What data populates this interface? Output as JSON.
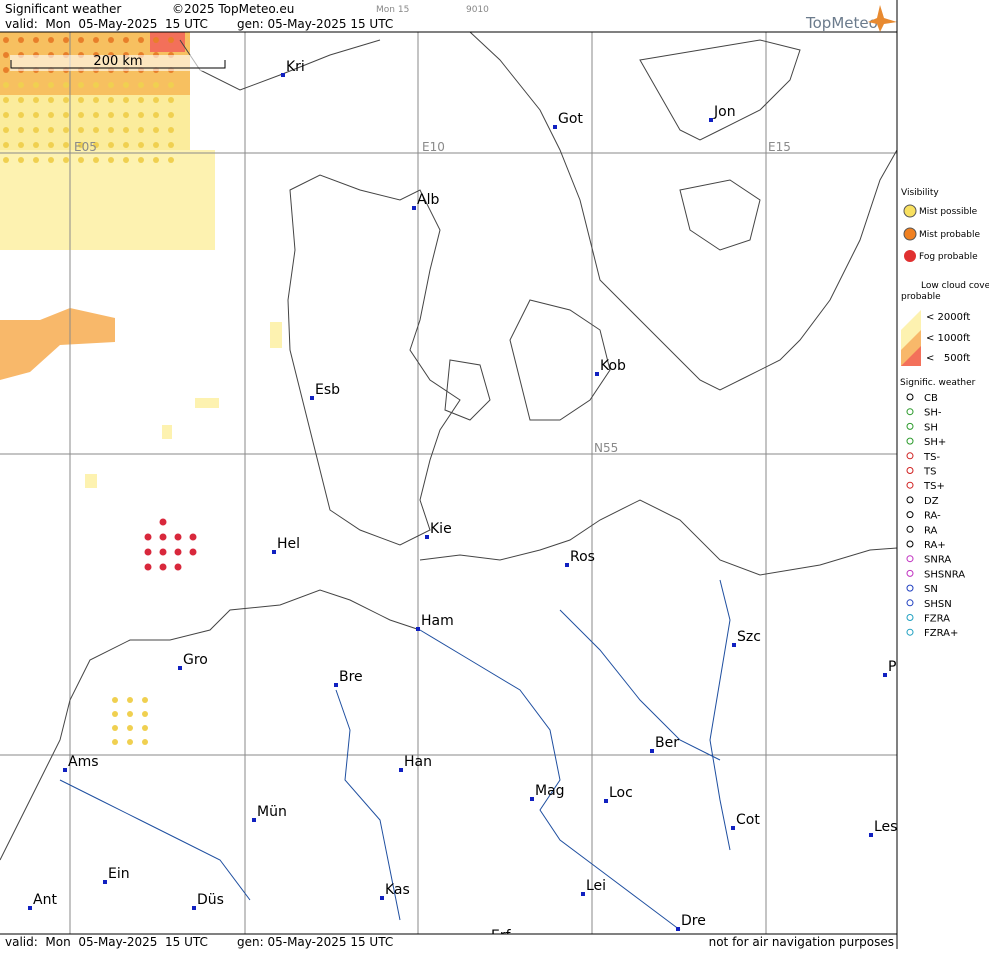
{
  "header": {
    "title": "Significant weather",
    "copyright": "©2025 TopMeteo.eu",
    "time_tab": "Mon 15",
    "code": "9010",
    "valid": "valid:  Mon  05-May-2025  15 UTC",
    "generated": "gen: 05-May-2025 15 UTC",
    "logo": "TopMeteo"
  },
  "map": {
    "scale": "200 km",
    "grid_labels": [
      "E05",
      "E10",
      "E15",
      "N55"
    ],
    "cities": [
      "Kri",
      "Got",
      "Jon",
      "Alb",
      "Kob",
      "Esb",
      "Kie",
      "Hel",
      "Ros",
      "Ham",
      "Szc",
      "P",
      "Gro",
      "Bre",
      "Ber",
      "Ams",
      "Han",
      "Mag",
      "Loc",
      "Mün",
      "Cot",
      "Les",
      "Ein",
      "Kas",
      "Lei",
      "Ant",
      "Düs",
      "Dre",
      "Erf"
    ]
  },
  "legend": {
    "visibility": {
      "title": "Visibility",
      "items": [
        "Mist possible",
        "Mist probable",
        "Fog probable"
      ]
    },
    "low_cloud": {
      "title": "Low cloud cover probable",
      "items": [
        "< 2000ft",
        "< 1000ft",
        "<   500ft"
      ]
    },
    "weather": {
      "title": "Signific. weather",
      "items": [
        "CB",
        "SH-",
        "SH",
        "SH+",
        "TS-",
        "TS",
        "TS+",
        "DZ",
        "RA-",
        "RA",
        "RA+",
        "SNRA",
        "SHSNRA",
        "SN",
        "SHSN",
        "FZRA",
        "FZRA+"
      ]
    }
  },
  "footer": {
    "valid": "valid:  Mon  05-May-2025  15 UTC",
    "generated": "gen: 05-May-2025 15 UTC",
    "disclaimer": "not for air navigation purposes"
  }
}
